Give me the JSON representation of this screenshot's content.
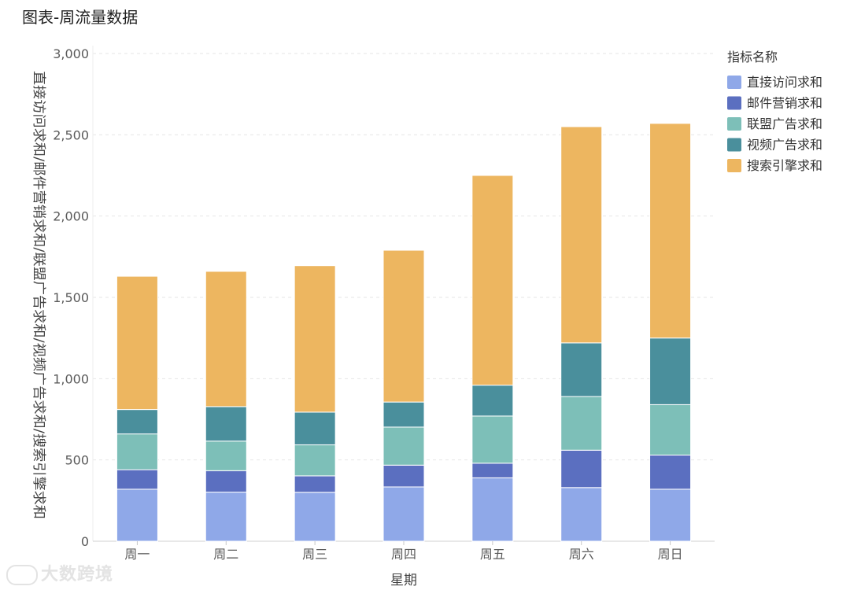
{
  "page": {
    "title": "图表-周流量数据",
    "watermark": "大数跨境"
  },
  "chart_data": {
    "type": "bar",
    "stacked": true,
    "title": "图表-周流量数据",
    "xlabel": "星期",
    "ylabel": "直接访问求和/邮件营销求和/联盟广告求和/视频广告求和/搜索引擎求和",
    "ylim": [
      0,
      3000
    ],
    "yticks": [
      0,
      500,
      1000,
      1500,
      2000,
      2500,
      3000
    ],
    "ytick_labels": [
      "0",
      "500",
      "1,000",
      "1,500",
      "2,000",
      "2,500",
      "3,000"
    ],
    "categories": [
      "周一",
      "周二",
      "周三",
      "周四",
      "周五",
      "周六",
      "周日"
    ],
    "legend_title": "指标名称",
    "legend_position": "right",
    "grid": true,
    "series": [
      {
        "name": "直接访问求和",
        "color": "#8fa8e8",
        "values": [
          320,
          302,
          301,
          334,
          390,
          330,
          320
        ]
      },
      {
        "name": "邮件营销求和",
        "color": "#5b6fc0",
        "values": [
          120,
          132,
          101,
          134,
          90,
          230,
          210
        ]
      },
      {
        "name": "联盟广告求和",
        "color": "#7dbfb8",
        "values": [
          220,
          182,
          191,
          234,
          290,
          330,
          310
        ]
      },
      {
        "name": "视频广告求和",
        "color": "#4a8f9c",
        "values": [
          150,
          212,
          201,
          154,
          190,
          330,
          410
        ]
      },
      {
        "name": "搜索引擎求和",
        "color": "#edb660",
        "values": [
          820,
          832,
          901,
          934,
          1290,
          1330,
          1320
        ]
      }
    ]
  }
}
